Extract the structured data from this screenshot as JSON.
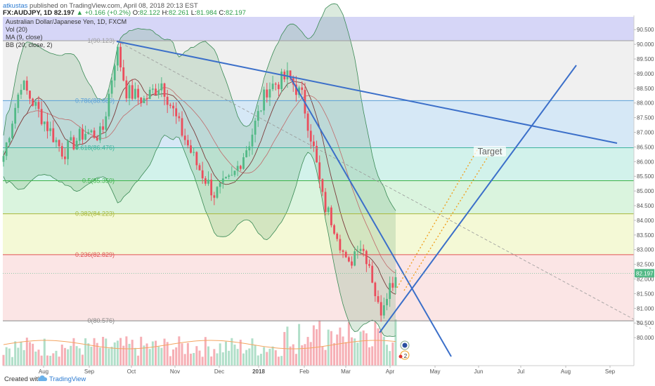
{
  "header": {
    "author": "atkustas",
    "published": "published on TradingView.com, April 08, 2018 20:13 EST",
    "symbol": "FX:AUDJPY, 1D",
    "last": "82.197",
    "change_arrow": "▲",
    "change": "+0.166 (+0.2%)",
    "o_label": "O:",
    "o_value": "82.122",
    "h_label": "H:",
    "h_value": "82.261",
    "l_label": "L:",
    "l_value": "81.984",
    "c_label": "C:",
    "c_value": "82.197"
  },
  "indicators": {
    "title": "Australian Dollar/Japanese Yen, 1D, FXCM",
    "vol": "Vol (20)",
    "ma": "MA (9, close)",
    "bb": "BB (20, close, 2)"
  },
  "footer": {
    "created": "Created with",
    "brand": "TradingView"
  },
  "chart_data": {
    "type": "candlestick",
    "title": "Australian Dollar/Japanese Yen, 1D, FXCM",
    "x_ticks": [
      "Aug",
      "Sep",
      "Oct",
      "Nov",
      "Dec",
      "2018",
      "Feb",
      "Mar",
      "Apr",
      "May",
      "Jun",
      "Jul",
      "Aug",
      "Sep"
    ],
    "y_ticks": [
      "90.500",
      "90.000",
      "89.500",
      "89.000",
      "88.500",
      "88.000",
      "87.500",
      "87.000",
      "86.500",
      "86.000",
      "85.500",
      "85.000",
      "84.500",
      "84.000",
      "83.500",
      "83.000",
      "82.500",
      "82.000",
      "81.500",
      "81.000",
      "80.500",
      "80.000"
    ],
    "ylim": [
      79.85,
      90.75
    ],
    "last_price_label": "82.197",
    "fibonacci": [
      {
        "level": "1",
        "price": "90.123",
        "label": "1(90.123)",
        "color": "#9e9e9e"
      },
      {
        "level": "0.786",
        "price": "88.080",
        "label": "0.786(88.080)",
        "color": "#5aa0d8"
      },
      {
        "level": "0.618",
        "price": "86.476",
        "label": "0.618(86.476)",
        "color": "#3db39e"
      },
      {
        "level": "0.5",
        "price": "85.350",
        "label": "0.5(85.350)",
        "color": "#3db34a"
      },
      {
        "level": "0.382",
        "price": "84.223",
        "label": "0.382(84.223)",
        "color": "#a8b83a"
      },
      {
        "level": "0.236",
        "price": "82.829",
        "label": "0.236(82.829)",
        "color": "#e05353"
      },
      {
        "level": "0",
        "price": "80.576",
        "label": "0(80.576)",
        "color": "#888888"
      }
    ],
    "annotation": "Target",
    "event_badges": [
      "2"
    ],
    "colors": {
      "up": "#53b987",
      "down": "#eb4d5c",
      "trendline": "#3b6fc9",
      "target_lines": "#f0a020",
      "bb_fill": "#7fb48a",
      "ma": "#7b3b3b",
      "vol_ma": "#f4a460"
    }
  }
}
